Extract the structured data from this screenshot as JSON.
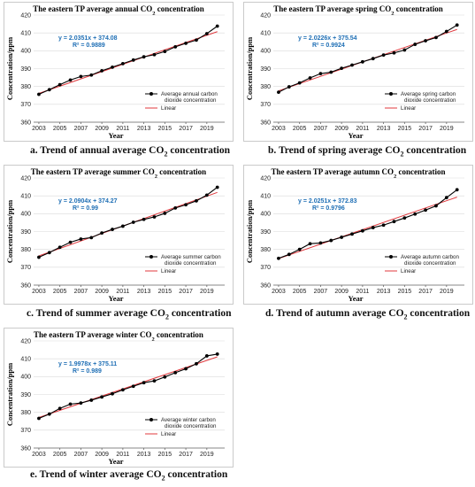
{
  "captions": {
    "a": {
      "prefix": "a. Trend of annual average CO",
      "sub": "2",
      "suffix": " concentration"
    },
    "b": {
      "prefix": "b. Trend of spring average CO",
      "sub": "2",
      "suffix": " concentration"
    },
    "c": {
      "prefix": "c. Trend of summer average CO",
      "sub": "2",
      "suffix": " concentration"
    },
    "d": {
      "prefix": "d. Trend of autumn average CO",
      "sub": "2",
      "suffix": " concentration"
    },
    "e": {
      "prefix": "e. Trend of winter average CO",
      "sub": "2",
      "suffix": " concentration"
    }
  },
  "colors": {
    "series": "#000000",
    "linear": "#e0393e",
    "equation": "#1f6fb5"
  },
  "chart_data": [
    {
      "id": "a",
      "type": "line",
      "title_prefix": "The eastern TP average annual CO",
      "title_sub": "2",
      "title_suffix": " concentration",
      "xlabel": "Year",
      "ylabel": "Concentration/ppm",
      "xlim": [
        2002.5,
        2020.7
      ],
      "ylim": [
        360,
        420
      ],
      "yticks": [
        360,
        370,
        380,
        390,
        400,
        410,
        420
      ],
      "xticks": [
        "2003",
        "2005",
        "2007",
        "2009",
        "2011",
        "2013",
        "2015",
        "2017",
        "2019"
      ],
      "grid": true,
      "legend": "right",
      "equation": "y = 2.0351x + 374.08",
      "r2": "R² = 0.9889",
      "series": [
        {
          "name": "Average annual carbon dioxide concentration",
          "x": [
            2003,
            2004,
            2005,
            2006,
            2007,
            2008,
            2009,
            2010,
            2011,
            2012,
            2013,
            2014,
            2015,
            2016,
            2017,
            2018,
            2019,
            2020
          ],
          "y": [
            375.6,
            378.2,
            381.0,
            383.6,
            385.6,
            386.4,
            388.8,
            390.8,
            392.8,
            394.8,
            396.6,
            397.8,
            399.6,
            402.2,
            404.2,
            406.0,
            409.6,
            413.8
          ]
        },
        {
          "name": "Linear",
          "slope": 2.0351,
          "intercept": 374.08
        }
      ]
    },
    {
      "id": "b",
      "type": "line",
      "title_prefix": "The eastern TP average spring CO",
      "title_sub": "2",
      "title_suffix": " concentration",
      "xlabel": "Year",
      "ylabel": "Concentration/ppm",
      "xlim": [
        2002.5,
        2020.7
      ],
      "ylim": [
        360,
        420
      ],
      "yticks": [
        360,
        370,
        380,
        390,
        400,
        410,
        420
      ],
      "xticks": [
        "2003",
        "2005",
        "2007",
        "2009",
        "2011",
        "2013",
        "2015",
        "2017",
        "2019"
      ],
      "grid": true,
      "legend": "right",
      "equation": "y = 2.0226x + 375.54",
      "r2": "R² = 0.9924",
      "series": [
        {
          "name": "Average spring carbon dioxide concentration",
          "x": [
            2003,
            2004,
            2005,
            2006,
            2007,
            2008,
            2009,
            2010,
            2011,
            2012,
            2013,
            2014,
            2015,
            2016,
            2017,
            2018,
            2019,
            2020
          ],
          "y": [
            376.8,
            379.8,
            382.0,
            384.8,
            387.2,
            388.0,
            390.2,
            392.0,
            393.8,
            395.6,
            397.6,
            398.8,
            400.4,
            403.6,
            405.6,
            407.4,
            410.8,
            414.4
          ]
        },
        {
          "name": "Linear",
          "slope": 2.0226,
          "intercept": 375.54
        }
      ]
    },
    {
      "id": "c",
      "type": "line",
      "title_prefix": "The eastern TP average summer CO",
      "title_sub": "2",
      "title_suffix": " concentration",
      "xlabel": "Year",
      "ylabel": "Concentration/ppm",
      "xlim": [
        2002.5,
        2020.7
      ],
      "ylim": [
        360,
        420
      ],
      "yticks": [
        360,
        370,
        380,
        390,
        400,
        410,
        420
      ],
      "xticks": [
        "2003",
        "2005",
        "2007",
        "2009",
        "2011",
        "2013",
        "2015",
        "2017",
        "2019"
      ],
      "grid": true,
      "legend": "right",
      "equation": "y = 2.0904x + 374.27",
      "r2": "R² = 0.99",
      "series": [
        {
          "name": "Average summer carbon dioxide concentration",
          "x": [
            2003,
            2004,
            2005,
            2006,
            2007,
            2008,
            2009,
            2010,
            2011,
            2012,
            2013,
            2014,
            2015,
            2016,
            2017,
            2018,
            2019,
            2020
          ],
          "y": [
            375.6,
            378.2,
            381.2,
            384.0,
            385.8,
            386.6,
            389.2,
            391.2,
            393.0,
            395.2,
            396.8,
            398.2,
            400.2,
            403.2,
            405.0,
            407.2,
            410.4,
            414.8
          ]
        },
        {
          "name": "Linear",
          "slope": 2.0904,
          "intercept": 374.27
        }
      ]
    },
    {
      "id": "d",
      "type": "line",
      "title_prefix": "The eastern TP average autumn CO",
      "title_sub": "2",
      "title_suffix": " concentration",
      "xlabel": "Year",
      "ylabel": "Concentration/ppm",
      "xlim": [
        2002.5,
        2020.7
      ],
      "ylim": [
        360,
        420
      ],
      "yticks": [
        360,
        370,
        380,
        390,
        400,
        410,
        420
      ],
      "xticks": [
        "2003",
        "2005",
        "2007",
        "2009",
        "2011",
        "2013",
        "2015",
        "2017",
        "2019"
      ],
      "grid": true,
      "legend": "right",
      "equation": "y = 2.0251x + 372.83",
      "r2": "R² = 0.9796",
      "series": [
        {
          "name": "Average autumn carbon dioxide concentration",
          "x": [
            2003,
            2004,
            2005,
            2006,
            2007,
            2008,
            2009,
            2010,
            2011,
            2012,
            2013,
            2014,
            2015,
            2016,
            2017,
            2018,
            2019,
            2020
          ],
          "y": [
            375.0,
            377.2,
            380.0,
            383.2,
            383.6,
            385.0,
            386.8,
            388.6,
            390.4,
            392.2,
            393.6,
            395.6,
            397.6,
            399.8,
            402.0,
            404.4,
            409.0,
            413.4
          ]
        },
        {
          "name": "Linear",
          "slope": 2.0251,
          "intercept": 372.83
        }
      ]
    },
    {
      "id": "e",
      "type": "line",
      "title_prefix": "The eastern TP average winter CO",
      "title_sub": "2",
      "title_suffix": " concentration",
      "xlabel": "Year",
      "ylabel": "Concentration/ppm",
      "xlim": [
        2002.5,
        2020.7
      ],
      "ylim": [
        360,
        420
      ],
      "yticks": [
        360,
        370,
        380,
        390,
        400,
        410,
        420
      ],
      "xticks": [
        "2003",
        "2005",
        "2007",
        "2009",
        "2011",
        "2013",
        "2015",
        "2017",
        "2019"
      ],
      "grid": true,
      "legend": "right",
      "equation": "y = 1.9978x + 375.11",
      "r2": "R² = 0.989",
      "series": [
        {
          "name": "Average winter carbon dioxide concentration",
          "x": [
            2003,
            2004,
            2005,
            2006,
            2007,
            2008,
            2009,
            2010,
            2011,
            2012,
            2013,
            2014,
            2015,
            2016,
            2017,
            2018,
            2019,
            2020
          ],
          "y": [
            376.6,
            379.0,
            382.2,
            384.6,
            385.2,
            386.8,
            388.6,
            390.4,
            392.6,
            394.6,
            396.6,
            397.6,
            399.8,
            402.2,
            404.4,
            407.2,
            411.6,
            412.6
          ]
        },
        {
          "name": "Linear",
          "slope": 1.9978,
          "intercept": 375.11
        }
      ]
    }
  ]
}
